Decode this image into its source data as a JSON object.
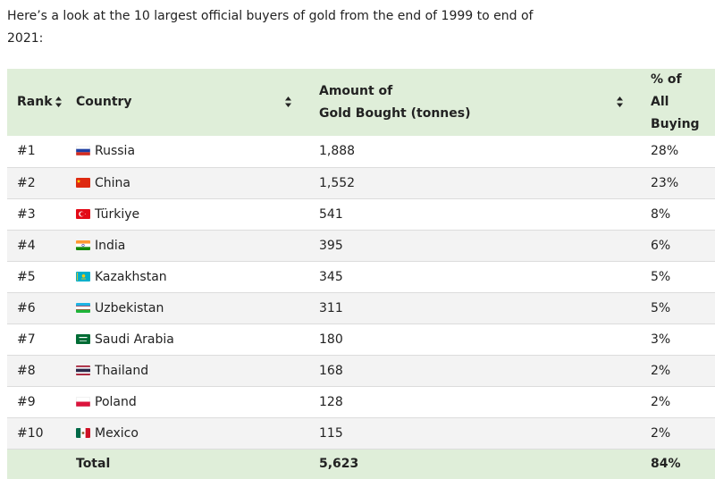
{
  "intro_text": "Here’s a look at the 10 largest official buyers of gold from the end of 1999 to end of 2021:",
  "table": {
    "headers": {
      "rank": "Rank",
      "country": "Country",
      "amount_line1": "Amount of",
      "amount_line2": "Gold Bought (tonnes)",
      "pct_line1": "% of",
      "pct_line2": "All Buying"
    },
    "rows": [
      {
        "rank": "#1",
        "country": "Russia",
        "flag": "russia-flag",
        "amount": "1,888",
        "pct": "28%"
      },
      {
        "rank": "#2",
        "country": "China",
        "flag": "china-flag",
        "amount": "1,552",
        "pct": "23%"
      },
      {
        "rank": "#3",
        "country": "Türkiye",
        "flag": "turkiye-flag",
        "amount": "541",
        "pct": "8%"
      },
      {
        "rank": "#4",
        "country": "India",
        "flag": "india-flag",
        "amount": "395",
        "pct": "6%"
      },
      {
        "rank": "#5",
        "country": "Kazakhstan",
        "flag": "kazakhstan-flag",
        "amount": "345",
        "pct": "5%"
      },
      {
        "rank": "#6",
        "country": "Uzbekistan",
        "flag": "uzbekistan-flag",
        "amount": "311",
        "pct": "5%"
      },
      {
        "rank": "#7",
        "country": "Saudi Arabia",
        "flag": "saudi-arabia-flag",
        "amount": "180",
        "pct": "3%"
      },
      {
        "rank": "#8",
        "country": "Thailand",
        "flag": "thailand-flag",
        "amount": "168",
        "pct": "2%"
      },
      {
        "rank": "#9",
        "country": "Poland",
        "flag": "poland-flag",
        "amount": "128",
        "pct": "2%"
      },
      {
        "rank": "#10",
        "country": "Mexico",
        "flag": "mexico-flag",
        "amount": "115",
        "pct": "2%"
      }
    ],
    "total": {
      "label": "Total",
      "amount": "5,623",
      "pct": "84%"
    }
  },
  "colors": {
    "header_bg": "#dfeed9",
    "row_alt_bg": "#f3f3f3"
  }
}
